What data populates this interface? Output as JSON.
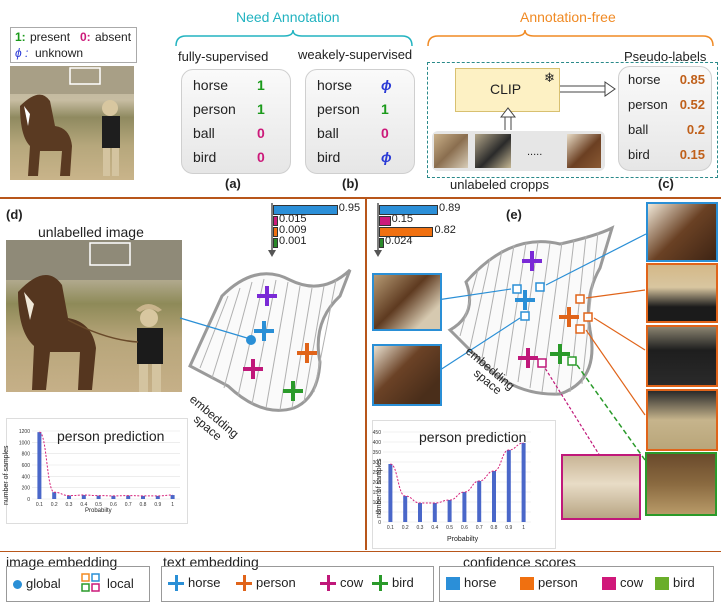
{
  "colors": {
    "teal": "#22b3c0",
    "orange": "#f08a24",
    "brown": "#c0601a",
    "green": "#1a9a1a",
    "magenta": "#cc1a7a",
    "blue": "#2a8fd6",
    "purple": "#7a2ad6",
    "bar_blue": "#2b8fd8",
    "bar_magenta": "#cc1a7a",
    "bar_orange": "#f07010",
    "bar_green": "#2a8a2a"
  },
  "key": {
    "present_sym": "1:",
    "present_label": "present",
    "absent_sym": "0:",
    "absent_label": "absent",
    "unknown_sym": "ϕ :",
    "unknown_label": "unknown"
  },
  "need_annotation": {
    "title": "Need Annotation",
    "fully_title": "fully-supervised",
    "weakly_title": "weakely-supervised",
    "fully": [
      {
        "label": "horse",
        "value": "1",
        "kind": "present"
      },
      {
        "label": "person",
        "value": "1",
        "kind": "present"
      },
      {
        "label": "ball",
        "value": "0",
        "kind": "absent"
      },
      {
        "label": "bird",
        "value": "0",
        "kind": "absent"
      }
    ],
    "weakly": [
      {
        "label": "horse",
        "value": "ϕ",
        "kind": "unknown"
      },
      {
        "label": "person",
        "value": "1",
        "kind": "present"
      },
      {
        "label": "ball",
        "value": "0",
        "kind": "absent"
      },
      {
        "label": "bird",
        "value": "ϕ",
        "kind": "unknown"
      }
    ],
    "label_a": "(a)",
    "label_b": "(b)"
  },
  "annotation_free": {
    "title": "Annotation-free",
    "clip": "CLIP",
    "snowflake": "❄",
    "dots": ".....",
    "cropps_caption": "unlabeled cropps",
    "pseudo_title": "Pseudo-labels",
    "pseudo": [
      {
        "label": "horse",
        "value": "0.85"
      },
      {
        "label": "person",
        "value": "0.52"
      },
      {
        "label": "ball",
        "value": "0.2"
      },
      {
        "label": "bird",
        "value": "0.15"
      }
    ],
    "label_c": "(c)"
  },
  "panel_d": {
    "label": "(d)",
    "caption": "unlabelled image",
    "bars": [
      {
        "value": 0.95,
        "text": "0.95",
        "color": "#2b8fd8"
      },
      {
        "value": 0.015,
        "text": "0.015",
        "color": "#cc1a7a"
      },
      {
        "value": 0.009,
        "text": "0.009",
        "color": "#f07010"
      },
      {
        "value": 0.001,
        "text": "0.001",
        "color": "#2a8a2a"
      }
    ],
    "space_label_1": "embedding",
    "space_label_2": "space"
  },
  "panel_e": {
    "label": "(e)",
    "bars": [
      {
        "value": 0.89,
        "text": "0.89",
        "color": "#2b8fd8"
      },
      {
        "value": 0.15,
        "text": "0.15",
        "color": "#cc1a7a"
      },
      {
        "value": 0.82,
        "text": "0.82",
        "color": "#f07010"
      },
      {
        "value": 0.024,
        "text": "0.024",
        "color": "#2a8a2a"
      }
    ],
    "space_label_1": "embedding",
    "space_label_2": "space"
  },
  "chart_data": [
    {
      "type": "bar",
      "title": "person prediction",
      "xlabel": "Probabilty",
      "ylabel": "number of samples",
      "categories": [
        "0.1",
        "0.2",
        "0.3",
        "0.4",
        "0.5",
        "0.6",
        "0.7",
        "0.8",
        "0.9",
        "1"
      ],
      "values": [
        1180,
        120,
        60,
        70,
        60,
        55,
        60,
        55,
        55,
        70
      ],
      "yticks": [
        "0",
        "200",
        "400",
        "600",
        "800",
        "1000",
        "1200"
      ],
      "ylim": [
        0,
        1200
      ]
    },
    {
      "type": "bar",
      "title": "person prediction",
      "xlabel": "Probabilty",
      "ylabel": "number of samples",
      "categories": [
        "0.1",
        "0.2",
        "0.3",
        "0.4",
        "0.5",
        "0.6",
        "0.7",
        "0.8",
        "0.9",
        "1"
      ],
      "values": [
        290,
        130,
        95,
        95,
        110,
        150,
        205,
        255,
        360,
        395
      ],
      "yticks": [
        "0",
        "50",
        "100",
        "150",
        "200",
        "250",
        "300",
        "350",
        "400",
        "450"
      ],
      "ylim": [
        0,
        450
      ]
    }
  ],
  "legend": {
    "image_title": "image embedding",
    "global": "global",
    "local": "local",
    "text_title": "text embedding",
    "text_items": [
      {
        "label": "horse",
        "color": "#2a8fd6"
      },
      {
        "label": "person",
        "color": "#e0641a"
      },
      {
        "label": "cow",
        "color": "#c0187a"
      },
      {
        "label": "bird",
        "color": "#2a9a2a"
      }
    ],
    "conf_title": "confidence scores",
    "conf_items": [
      {
        "label": "horse",
        "color": "#2b8fd8"
      },
      {
        "label": "person",
        "color": "#f07010"
      },
      {
        "label": "cow",
        "color": "#d0187a"
      },
      {
        "label": "bird",
        "color": "#6aae2a"
      }
    ]
  }
}
